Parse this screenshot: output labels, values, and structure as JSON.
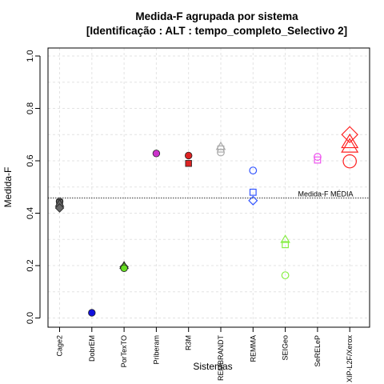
{
  "chart_data": {
    "type": "scatter",
    "title": "Medida-F agrupada por sistema",
    "subtitle": "[Identificação : ALT : tempo_completo_Selectivo 2]",
    "xlabel": "Sistemas",
    "ylabel": "Medida-F",
    "ylim": [
      0.0,
      1.0
    ],
    "yticks": [
      "0.0",
      "0.2",
      "0.4",
      "0.6",
      "0.8",
      "1.0"
    ],
    "grid": true,
    "categories": [
      "Cage2",
      "DobrEM",
      "PorTexTO",
      "Priberam",
      "R3M",
      "REMBRANDT",
      "REMMA",
      "SEIGeo",
      "SeRELeP",
      "XIP-L2F/Xerox"
    ],
    "mean_line": {
      "value": 0.458,
      "label": "Medida-F MÉDIA"
    },
    "points": [
      {
        "system": "Cage2",
        "value": 0.445,
        "shape": "circle",
        "filled": true,
        "color": "#666666"
      },
      {
        "system": "Cage2",
        "value": 0.44,
        "shape": "square",
        "filled": true,
        "color": "#666666"
      },
      {
        "system": "Cage2",
        "value": 0.437,
        "shape": "triangle",
        "filled": true,
        "color": "#666666"
      },
      {
        "system": "Cage2",
        "value": 0.42,
        "shape": "diamond",
        "filled": true,
        "color": "#666666"
      },
      {
        "system": "DobrEM",
        "value": 0.02,
        "shape": "circle",
        "filled": true,
        "color": "#1010dd"
      },
      {
        "system": "PorTexTO",
        "value": 0.2,
        "shape": "triangle",
        "filled": true,
        "color": "#66dd22"
      },
      {
        "system": "PorTexTO",
        "value": 0.195,
        "shape": "diamond",
        "filled": true,
        "color": "#66dd22"
      },
      {
        "system": "PorTexTO",
        "value": 0.19,
        "shape": "circle",
        "filled": true,
        "color": "#66dd22"
      },
      {
        "system": "Priberam",
        "value": 0.628,
        "shape": "circle",
        "filled": true,
        "color": "#cc33cc"
      },
      {
        "system": "R3M",
        "value": 0.62,
        "shape": "circle",
        "filled": true,
        "color": "#dd2222"
      },
      {
        "system": "R3M",
        "value": 0.59,
        "shape": "square",
        "filled": true,
        "color": "#dd2222"
      },
      {
        "system": "REMBRANDT",
        "value": 0.655,
        "shape": "triangle",
        "filled": false,
        "color": "#aaaaaa"
      },
      {
        "system": "REMBRANDT",
        "value": 0.645,
        "shape": "square",
        "filled": false,
        "color": "#aaaaaa"
      },
      {
        "system": "REMBRANDT",
        "value": 0.632,
        "shape": "circle",
        "filled": false,
        "color": "#aaaaaa"
      },
      {
        "system": "REMMA",
        "value": 0.563,
        "shape": "circle",
        "filled": false,
        "color": "#3355ff"
      },
      {
        "system": "REMMA",
        "value": 0.48,
        "shape": "square",
        "filled": false,
        "color": "#3355ff"
      },
      {
        "system": "REMMA",
        "value": 0.448,
        "shape": "diamond",
        "filled": false,
        "color": "#3355ff"
      },
      {
        "system": "SEIGeo",
        "value": 0.3,
        "shape": "triangle",
        "filled": false,
        "color": "#88ee44"
      },
      {
        "system": "SEIGeo",
        "value": 0.28,
        "shape": "square",
        "filled": false,
        "color": "#88ee44"
      },
      {
        "system": "SEIGeo",
        "value": 0.163,
        "shape": "circle",
        "filled": false,
        "color": "#88ee44"
      },
      {
        "system": "SeRELeP",
        "value": 0.615,
        "shape": "circle",
        "filled": false,
        "color": "#ee55ee"
      },
      {
        "system": "SeRELeP",
        "value": 0.603,
        "shape": "square",
        "filled": false,
        "color": "#ee55ee"
      },
      {
        "system": "XIP-L2F/Xerox",
        "value": 0.7,
        "shape": "diamond",
        "filled": false,
        "color": "#ff2222"
      },
      {
        "system": "XIP-L2F/Xerox",
        "value": 0.672,
        "shape": "triangle",
        "filled": false,
        "color": "#ff2222"
      },
      {
        "system": "XIP-L2F/Xerox",
        "value": 0.655,
        "shape": "triangle",
        "filled": false,
        "color": "#ff2222"
      },
      {
        "system": "XIP-L2F/Xerox",
        "value": 0.598,
        "shape": "circle",
        "filled": false,
        "color": "#ff2222"
      }
    ]
  }
}
